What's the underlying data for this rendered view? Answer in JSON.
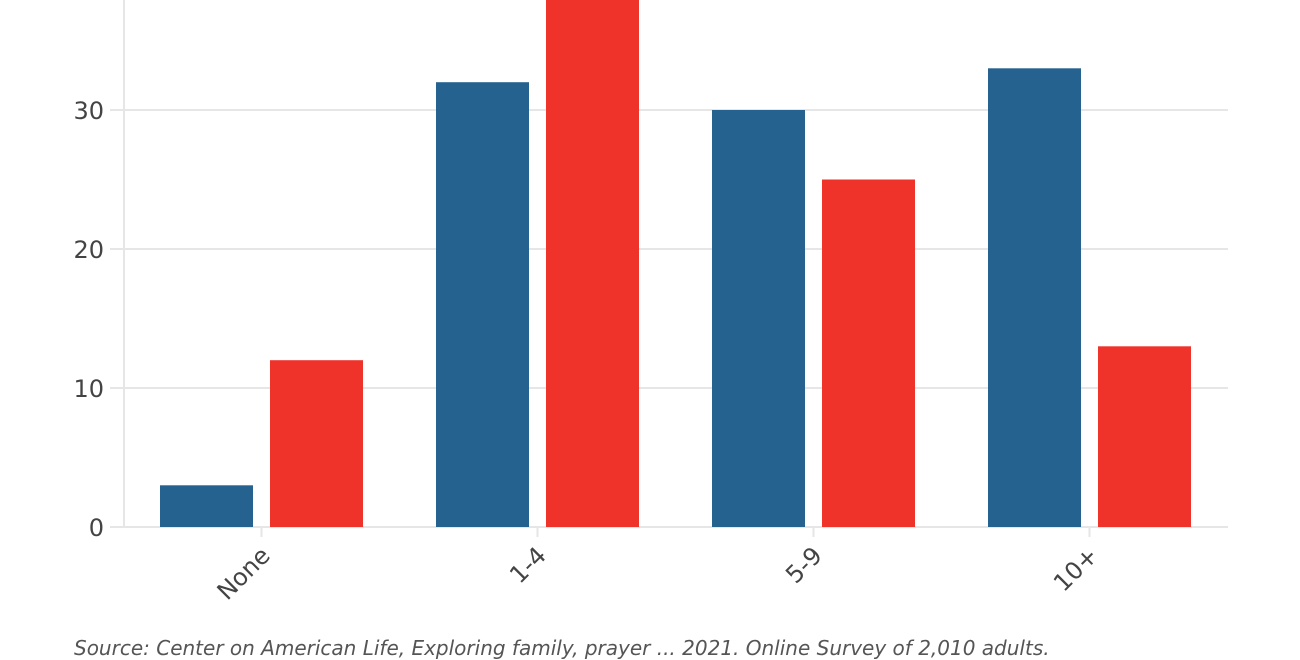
{
  "chart_data": {
    "type": "bar",
    "categories": [
      "None",
      "1-4",
      "5-9",
      "10+"
    ],
    "series": [
      {
        "color": "#26628f",
        "values": [
          3,
          32,
          30,
          33
        ]
      },
      {
        "color": "#ef332b",
        "values": [
          12,
          38,
          25,
          13
        ]
      }
    ],
    "yticks": [
      0,
      10,
      20,
      30
    ],
    "ylim": [
      0,
      38
    ],
    "grid": true,
    "xlabel": "",
    "ylabel": ""
  },
  "source_note": "Source: Center on American Life, Exploring family, prayer ... 2021. Online Survey of 2,010 adults."
}
